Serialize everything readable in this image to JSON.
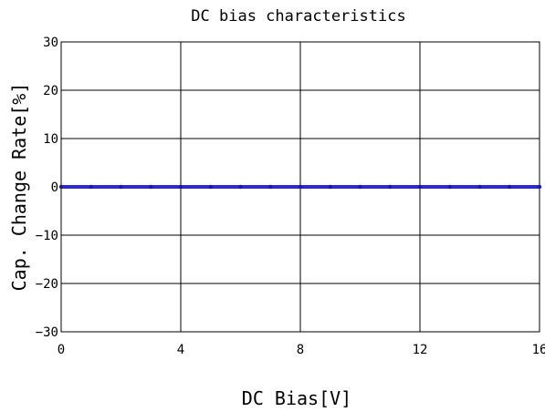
{
  "chart_data": {
    "type": "line",
    "title": "DC bias characteristics",
    "xlabel": "DC Bias[V]",
    "ylabel": "Cap. Change Rate[%]",
    "xlim": [
      0,
      16
    ],
    "ylim": [
      -30,
      30
    ],
    "x_ticks": [
      0,
      4,
      8,
      12,
      16
    ],
    "y_ticks": [
      -30,
      -20,
      -10,
      0,
      10,
      20,
      30
    ],
    "grid": true,
    "legend": "none",
    "series": [
      {
        "color": "#2b2bd6",
        "x": [
          0,
          1,
          2,
          3,
          4,
          5,
          6,
          7,
          8,
          9,
          10,
          11,
          12,
          13,
          14,
          15,
          16
        ],
        "y": [
          0,
          0,
          0,
          0,
          0,
          0,
          0,
          0,
          0,
          0,
          0,
          0,
          0,
          0,
          0,
          0,
          0
        ]
      }
    ]
  }
}
